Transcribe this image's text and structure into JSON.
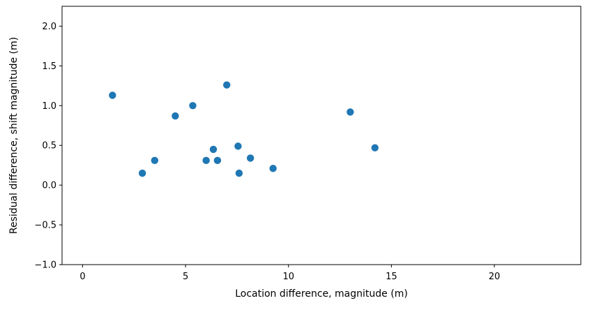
{
  "chart_data": {
    "type": "scatter",
    "title": "",
    "xlabel": "Location difference, magnitude (m)",
    "ylabel": "Residual difference, shift magnitude (m)",
    "xlim": [
      -1,
      24.2
    ],
    "ylim": [
      -1.0,
      2.25
    ],
    "xticks": [
      0,
      5,
      10,
      15,
      20
    ],
    "xtick_labels": [
      "0",
      "5",
      "10",
      "15",
      "20"
    ],
    "yticks": [
      -1.0,
      -0.5,
      0.0,
      0.5,
      1.0,
      1.5,
      2.0
    ],
    "ytick_labels": [
      "−1.0",
      "−0.5",
      "0.0",
      "0.5",
      "1.0",
      "1.5",
      "2.0"
    ],
    "grid": false,
    "marker_color": "#1f77b4",
    "series": [
      {
        "x": [
          1.45,
          2.9,
          3.5,
          4.5,
          5.35,
          6.0,
          6.35,
          6.55,
          7.0,
          7.55,
          7.6,
          8.15,
          9.25,
          13.0,
          14.2
        ],
        "y": [
          1.13,
          0.15,
          0.31,
          0.87,
          1.0,
          0.31,
          0.45,
          0.31,
          1.26,
          0.49,
          0.15,
          0.34,
          0.21,
          0.92,
          0.47
        ]
      }
    ]
  }
}
